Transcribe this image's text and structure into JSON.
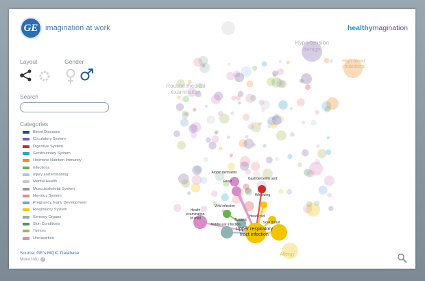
{
  "header": {
    "tagline": "imagination at work",
    "brand_part1": "healthy",
    "brand_part2": "magination",
    "logo_text": "GE"
  },
  "sidebar": {
    "layout_label": "Layout",
    "gender_label": "Gender",
    "search_label": "Search",
    "search_value": "",
    "categories_label": "Categories",
    "categories": [
      {
        "label": "Blood Diseases",
        "color": "#1f4e8c"
      },
      {
        "label": "Circulatory System",
        "color": "#7b5ea7"
      },
      {
        "label": "Digestive System",
        "color": "#d62728"
      },
      {
        "label": "Genitourinary System",
        "color": "#2ca1c9"
      },
      {
        "label": "Hormone Nutrition Immunity",
        "color": "#ef8a1f"
      },
      {
        "label": "Infections",
        "color": "#6ab04c"
      },
      {
        "label": "Injury and Poisoning",
        "color": "#9ecae1"
      },
      {
        "label": "Mental Health",
        "color": "#c7c7c7"
      },
      {
        "label": "Musculoskeletal System",
        "color": "#9a9a9a"
      },
      {
        "label": "Nervous System",
        "color": "#e5878a"
      },
      {
        "label": "Pregnancy, Early Development",
        "color": "#6fa6d8"
      },
      {
        "label": "Respiratory System",
        "color": "#f2c500"
      },
      {
        "label": "Sensory Organs",
        "color": "#8fb3b0"
      },
      {
        "label": "Skin Conditions",
        "color": "#5a8c6a"
      },
      {
        "label": "Tumors",
        "color": "#a3b548"
      },
      {
        "label": "Unclassified",
        "color": "#d98bc7"
      }
    ],
    "source_text": "Source: GE's MQIC Database",
    "more_info": "More Info",
    "more_info_icon": "?"
  },
  "graph": {
    "faded_labels": [
      {
        "text": "Hypertension benign"
      },
      {
        "text": "High blood cholesterol"
      },
      {
        "text": "Routine medical examination"
      },
      {
        "text": "Allergy"
      }
    ],
    "center_label": "Upper respiratory tract infection",
    "connected_labels": [
      "Atopic dermatitis",
      "Fever",
      "Gastroenteritis and",
      "Wheezing",
      "Viral infection",
      "Health examination of child",
      "Nausea",
      "Middle ear infection",
      "Sore throat",
      "Head cold"
    ]
  },
  "colors": {
    "accent_link": "#2a7ab8",
    "respiratory": "#f2c500"
  },
  "icons": {
    "layout_network": "network-layout-icon",
    "layout_circle": "circle-layout-icon",
    "female": "female-icon",
    "male": "male-icon",
    "zoom": "magnifier-icon"
  }
}
